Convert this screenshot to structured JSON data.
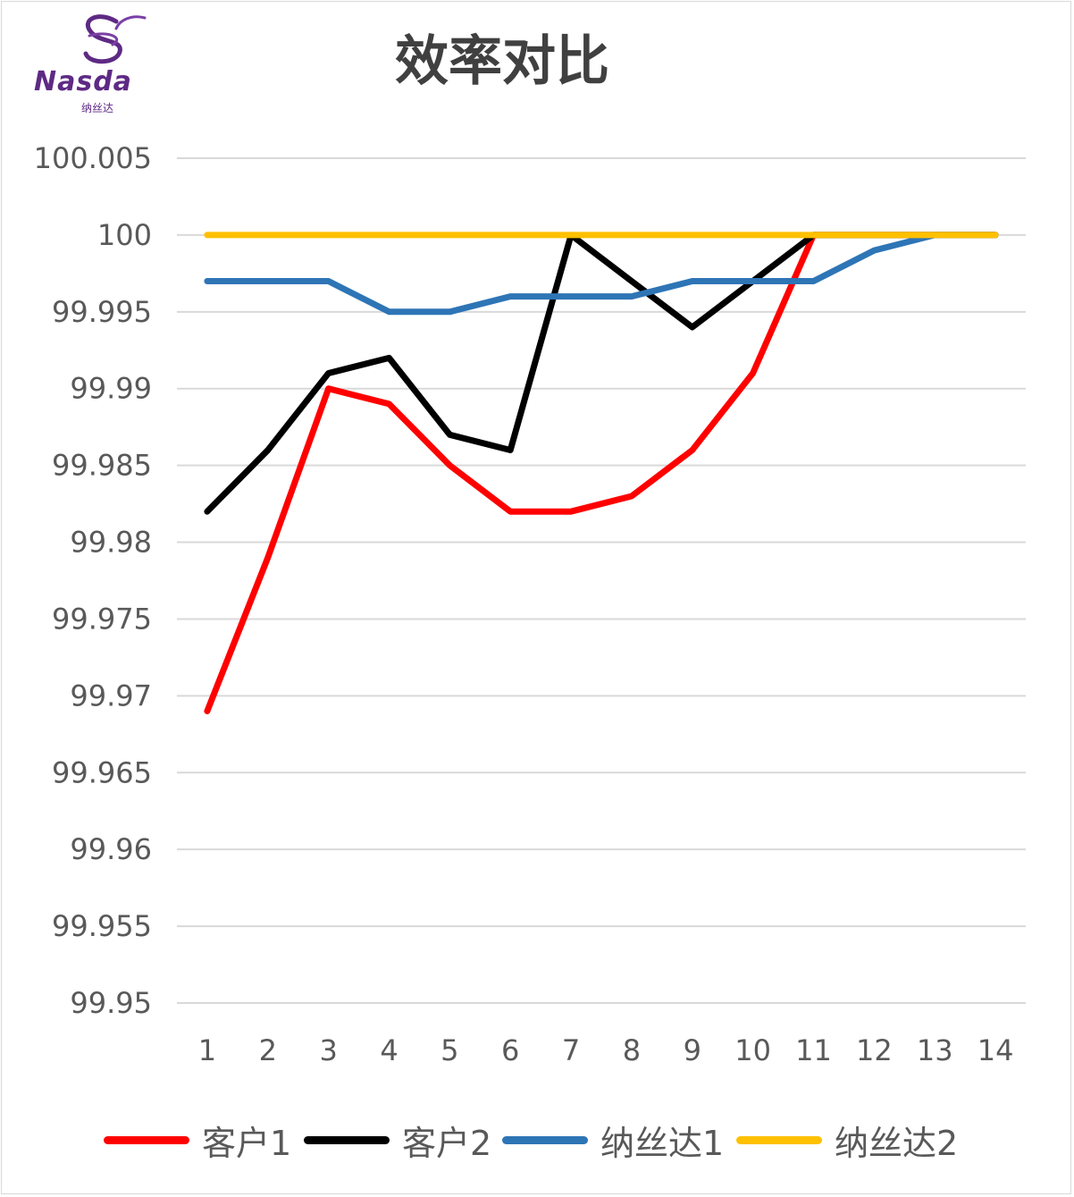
{
  "logo": {
    "wordmark": "Nasda",
    "subtitle": "纳丝达",
    "icon": "swirl-ribbon-icon",
    "color": "#5e2a84"
  },
  "chart_data": {
    "type": "line",
    "title": "效率对比",
    "xlabel": "",
    "ylabel": "",
    "categories": [
      "1",
      "2",
      "3",
      "4",
      "5",
      "6",
      "7",
      "8",
      "9",
      "10",
      "11",
      "12",
      "13",
      "14"
    ],
    "ylim": [
      99.95,
      100.005
    ],
    "yticks": [
      "100.005",
      "100",
      "99.995",
      "99.99",
      "99.985",
      "99.98",
      "99.975",
      "99.97",
      "99.965",
      "99.96",
      "99.955",
      "99.95"
    ],
    "ytick_values": [
      100.005,
      100,
      99.995,
      99.99,
      99.985,
      99.98,
      99.975,
      99.97,
      99.965,
      99.96,
      99.955,
      99.95
    ],
    "grid": true,
    "legend_position": "bottom",
    "series": [
      {
        "name": "客户1",
        "color": "#ff0000",
        "values": [
          99.969,
          99.979,
          99.99,
          99.989,
          99.985,
          99.982,
          99.982,
          99.983,
          99.986,
          99.991,
          100.0,
          100.0,
          100.0,
          100.0
        ]
      },
      {
        "name": "客户2",
        "color": "#000000",
        "values": [
          99.982,
          99.986,
          99.991,
          99.992,
          99.987,
          99.986,
          100.0,
          99.997,
          99.994,
          99.997,
          100.0,
          100.0,
          100.0,
          100.0
        ]
      },
      {
        "name": "纳丝达1",
        "color": "#2e75b6",
        "values": [
          99.997,
          99.997,
          99.997,
          99.995,
          99.995,
          99.996,
          99.996,
          99.996,
          99.997,
          99.997,
          99.997,
          99.999,
          100.0,
          100.0
        ]
      },
      {
        "name": "纳丝达2",
        "color": "#ffc000",
        "values": [
          100.0,
          100.0,
          100.0,
          100.0,
          100.0,
          100.0,
          100.0,
          100.0,
          100.0,
          100.0,
          100.0,
          100.0,
          100.0,
          100.0
        ]
      }
    ]
  }
}
